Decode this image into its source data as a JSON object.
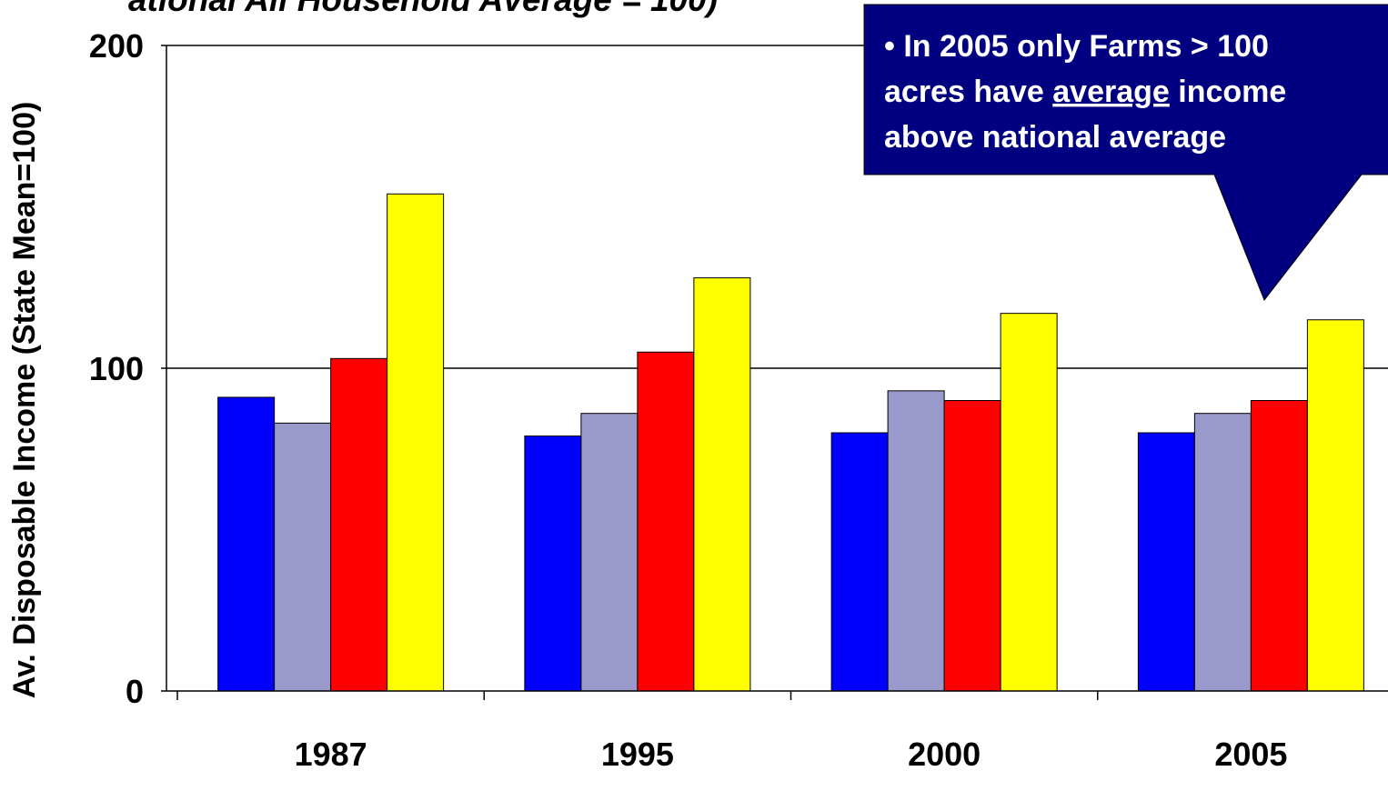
{
  "chart_data": {
    "type": "bar",
    "title": "ational All Household Average = 100)",
    "y_label": "Av. Disposable Income (State Mean=100)",
    "categories": [
      "1987",
      "1995",
      "2000",
      "2005"
    ],
    "series": [
      {
        "color": "#0000ff",
        "values": [
          91,
          79,
          80,
          80
        ]
      },
      {
        "color": "#9999cc",
        "values": [
          83,
          86,
          93,
          86
        ]
      },
      {
        "color": "#ff0000",
        "values": [
          103,
          105,
          90,
          90
        ]
      },
      {
        "color": "#ffff00",
        "values": [
          154,
          128,
          117,
          115
        ]
      }
    ],
    "ylim": [
      0,
      200
    ],
    "yticks": [
      0,
      100,
      200
    ],
    "grid": true,
    "annotation": {
      "color": "#000080",
      "lines": [
        [
          "• In 2005 only Farms > 100"
        ],
        [
          "acres have ",
          "average",
          " income"
        ],
        [
          "above national average"
        ]
      ],
      "underlined": [
        [
          1,
          1
        ]
      ]
    }
  }
}
